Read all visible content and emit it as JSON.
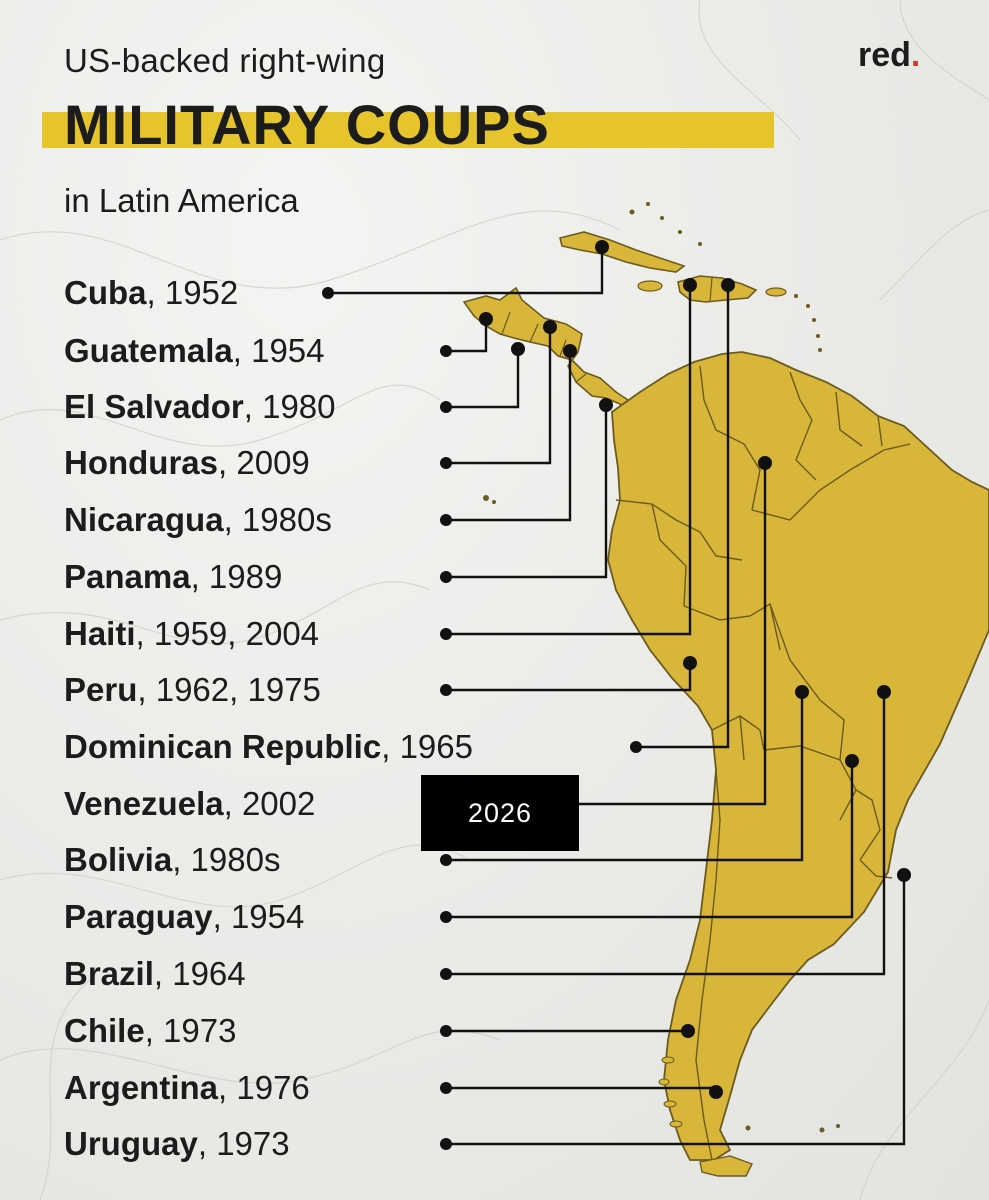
{
  "header": {
    "subtitle_top": "US-backed right-wing",
    "title": "MILITARY COUPS",
    "subtitle_bottom": "in Latin America",
    "brand": "red",
    "brand_dot": "."
  },
  "colors": {
    "land": "#d8b63a",
    "border": "#6b5b1e",
    "highlight": "#e6c52c",
    "ink": "#1c1c1c",
    "brand_dot": "#d33a2c",
    "badge_bg": "#000000"
  },
  "coups": [
    {
      "country": "Cuba",
      "years": "1952"
    },
    {
      "country": "Guatemala",
      "years": "1954"
    },
    {
      "country": "El Salvador",
      "years": "1980"
    },
    {
      "country": "Honduras",
      "years": "2009"
    },
    {
      "country": "Nicaragua",
      "years": "1980s"
    },
    {
      "country": "Panama",
      "years": "1989"
    },
    {
      "country": "Haiti",
      "years": "1959, 2004"
    },
    {
      "country": "Peru",
      "years": "1962, 1975"
    },
    {
      "country": "Dominican Republic",
      "years": "1965"
    },
    {
      "country": "Venezuela",
      "years": "2002"
    },
    {
      "country": "Bolivia",
      "years": "1980s"
    },
    {
      "country": "Paraguay",
      "years": "1954"
    },
    {
      "country": "Brazil",
      "years": "1964"
    },
    {
      "country": "Chile",
      "years": "1973"
    },
    {
      "country": "Argentina",
      "years": "1976"
    },
    {
      "country": "Uruguay",
      "years": "1973"
    }
  ],
  "badge": {
    "label": "2026"
  }
}
